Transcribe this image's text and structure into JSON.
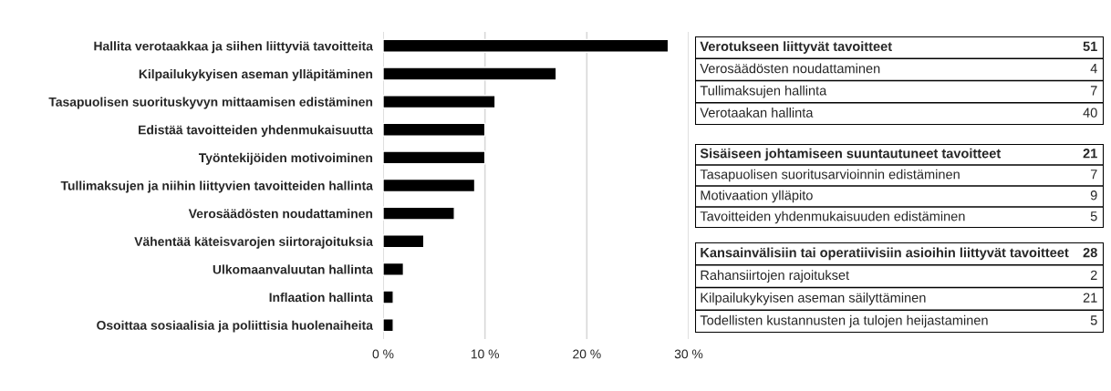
{
  "chart_data": [
    {
      "type": "bar",
      "orientation": "horizontal",
      "color": "#000000",
      "categories": [
        "Hallita verotaakkaa ja siihen liittyviä tavoitteita",
        "Kilpailukykyisen aseman ylläpitäminen",
        "Tasapuolisen suorituskyvyn mittaamisen edistäminen",
        "Edistää tavoitteiden yhdenmukaisuutta",
        "Työntekijöiden motivoiminen",
        "Tullimaksujen ja niihin liittyvien tavoitteiden hallinta",
        "Verosäädösten noudattaminen",
        "Vähentää käteisvarojen siirtorajoituksia",
        "Ulkomaanvaluutan hallinta",
        "Inflaation hallinta",
        "Osoittaa sosiaalisia ja poliittisia huolenaiheita"
      ],
      "values": [
        28,
        17,
        11,
        10,
        10,
        9,
        7,
        4,
        2,
        1,
        1
      ],
      "xlim": [
        0,
        30
      ],
      "xticks": [
        {
          "value": 0,
          "label": "0 %"
        },
        {
          "value": 10,
          "label": "10 %"
        },
        {
          "value": 20,
          "label": "20 %"
        },
        {
          "value": 30,
          "label": "30 %"
        }
      ],
      "grid": "x"
    },
    {
      "type": "other",
      "title": "Verotukseen liittyvät tavoitteet",
      "totals": [
        "51"
      ],
      "categories": [
        "Verosäädösten noudattaminen",
        "Tullimaksujen hallinta",
        "Verotaakan hallinta"
      ],
      "values": [
        4,
        7,
        40
      ],
      "data_labels": true
    },
    {
      "type": "other",
      "title": "Sisäiseen johtamiseen suuntautuneet tavoitteet",
      "totals": [
        "21"
      ],
      "categories": [
        "Tasapuolisen suoritusarvioinnin edistäminen",
        "Motivaation ylläpito",
        "Tavoitteiden yhdenmukaisuuden edistäminen"
      ],
      "values": [
        7,
        9,
        5
      ],
      "data_labels": true
    },
    {
      "type": "other",
      "title": "Kansainvälisiin tai operatiivisiin asioihin liittyvät tavoitteet",
      "totals": [
        "28"
      ],
      "categories": [
        "Rahansiirtojen rajoitukset",
        "Kilpailukykyisen aseman säilyttäminen",
        "Todellisten kustannusten ja tulojen heijastaminen"
      ],
      "values": [
        2,
        21,
        5
      ],
      "data_labels": true
    }
  ]
}
